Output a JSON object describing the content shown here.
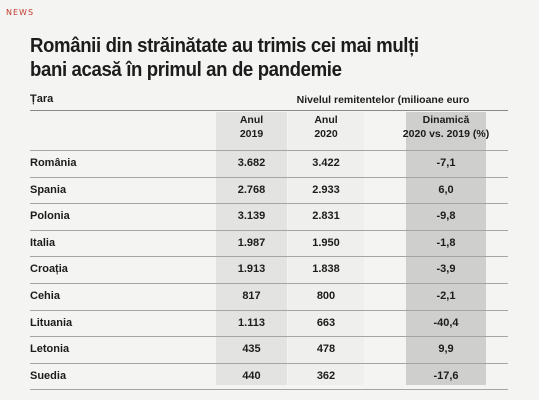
{
  "tag": "NEWS",
  "title_lines": [
    "Românii din străinătate au trimis cei mai mulți",
    "bani acasă în primul an de pandemie"
  ],
  "header": {
    "country": "Țara",
    "level": "Nivelul remitentelor (milioane euro",
    "col_2019": [
      "Anul",
      "2019"
    ],
    "col_2020": [
      "Anul",
      "2020"
    ],
    "col_dyn": [
      "Dinamică",
      "2020 vs. 2019 (%)"
    ]
  },
  "chart_data": {
    "type": "table",
    "title": "Românii din străinătate au trimis cei mai mulți bani acasă în primul an de pandemie",
    "columns": [
      "Țara",
      "Anul 2019",
      "Anul 2020",
      "Dinamică 2020 vs. 2019 (%)"
    ],
    "rows": [
      {
        "country": "România",
        "y2019": "3.682",
        "y2020": "3.422",
        "dyn": "-7,1"
      },
      {
        "country": "Spania",
        "y2019": "2.768",
        "y2020": "2.933",
        "dyn": "6,0"
      },
      {
        "country": "Polonia",
        "y2019": "3.139",
        "y2020": "2.831",
        "dyn": "-9,8"
      },
      {
        "country": "Italia",
        "y2019": "1.987",
        "y2020": "1.950",
        "dyn": "-1,8"
      },
      {
        "country": "Croația",
        "y2019": "1.913",
        "y2020": "1.838",
        "dyn": "-3,9"
      },
      {
        "country": "Cehia",
        "y2019": "817",
        "y2020": "800",
        "dyn": "-2,1"
      },
      {
        "country": "Lituania",
        "y2019": "1.113",
        "y2020": "663",
        "dyn": "-40,4"
      },
      {
        "country": "Letonia",
        "y2019": "435",
        "y2020": "478",
        "dyn": "9,9"
      },
      {
        "country": "Suedia",
        "y2019": "440",
        "y2020": "362",
        "dyn": "-17,6"
      }
    ]
  }
}
